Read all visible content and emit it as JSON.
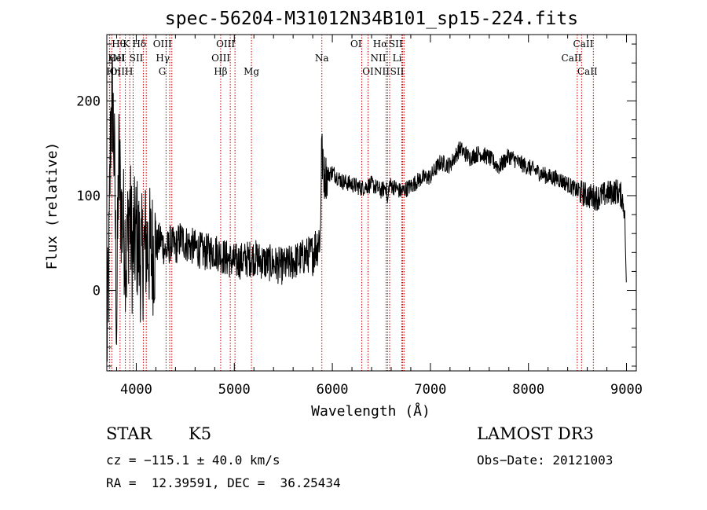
{
  "chart_data": {
    "type": "line",
    "title": "spec-56204-M31012N34B101_sp15-224.fits",
    "xlabel": "Wavelength (Å)",
    "ylabel": "Flux (relative)",
    "xlim": [
      3700,
      9100
    ],
    "ylim": [
      -85,
      270
    ],
    "xticks": [
      4000,
      5000,
      6000,
      7000,
      8000,
      9000
    ],
    "yticks": [
      0,
      100,
      200
    ],
    "spectrum": {
      "x": [
        3700,
        3720,
        3740,
        3760,
        3780,
        3800,
        3820,
        3850,
        3880,
        3900,
        3930,
        3960,
        4000,
        4050,
        4100,
        4150,
        4200,
        4250,
        4300,
        4350,
        4400,
        4450,
        4500,
        4600,
        4700,
        4800,
        4900,
        5000,
        5100,
        5200,
        5300,
        5400,
        5500,
        5600,
        5700,
        5800,
        5850,
        5880,
        5890,
        5900,
        5920,
        6000,
        6100,
        6200,
        6300,
        6400,
        6500,
        6550,
        6563,
        6580,
        6650,
        6700,
        6800,
        6900,
        7000,
        7100,
        7200,
        7300,
        7400,
        7500,
        7600,
        7700,
        7800,
        7900,
        8000,
        8100,
        8200,
        8300,
        8400,
        8500,
        8600,
        8700,
        8800,
        8900,
        8950,
        8980,
        9000
      ],
      "y": [
        -60,
        20,
        180,
        200,
        120,
        -40,
        140,
        80,
        60,
        30,
        90,
        40,
        60,
        30,
        50,
        40,
        45,
        55,
        40,
        50,
        45,
        55,
        50,
        45,
        40,
        42,
        35,
        30,
        32,
        35,
        30,
        28,
        25,
        30,
        35,
        40,
        50,
        60,
        170,
        130,
        120,
        125,
        115,
        112,
        108,
        112,
        105,
        110,
        90,
        112,
        108,
        104,
        110,
        118,
        120,
        135,
        132,
        150,
        140,
        145,
        140,
        130,
        142,
        135,
        130,
        125,
        120,
        118,
        112,
        105,
        100,
        98,
        102,
        105,
        100,
        85,
        0
      ]
    },
    "lines": [
      {
        "label": "Hθ",
        "wave": 3750,
        "row": 0,
        "anchor": "start"
      },
      {
        "label": "K",
        "wave": 3934,
        "row": 0,
        "anchor": "end"
      },
      {
        "label": "Hδ",
        "wave": 4102,
        "row": 0,
        "anchor": "end"
      },
      {
        "label": "OIII",
        "wave": 4363,
        "row": 0,
        "anchor": "end"
      },
      {
        "label": "OIII",
        "wave": 5007,
        "row": 0,
        "anchor": "end"
      },
      {
        "label": "OI",
        "wave": 6300,
        "row": 0,
        "anchor": "end"
      },
      {
        "label": "Hα",
        "wave": 6563,
        "row": 0,
        "anchor": "end"
      },
      {
        "label": "SII",
        "wave": 6717,
        "row": 0,
        "anchor": "end"
      },
      {
        "label": "CaII",
        "wave": 8662,
        "row": 0,
        "anchor": "end"
      },
      {
        "label": "OII",
        "wave": 3727,
        "row": 1,
        "anchor": "start"
      },
      {
        "label": "HeI",
        "wave": 3889,
        "row": 1,
        "anchor": "end"
      },
      {
        "label": "SII",
        "wave": 4072,
        "row": 1,
        "anchor": "end"
      },
      {
        "label": "Hγ",
        "wave": 4341,
        "row": 1,
        "anchor": "end"
      },
      {
        "label": "OIII",
        "wave": 4959,
        "row": 1,
        "anchor": "end"
      },
      {
        "label": "Na",
        "wave": 5893,
        "row": 1,
        "anchor": "middle"
      },
      {
        "label": "NII",
        "wave": 6548,
        "row": 1,
        "anchor": "end"
      },
      {
        "label": "Li",
        "wave": 6708,
        "row": 1,
        "anchor": "end"
      },
      {
        "label": "CaII",
        "wave": 8542,
        "row": 1,
        "anchor": "end"
      },
      {
        "label": "OII",
        "wave": 3729,
        "row": 2,
        "anchor": "start"
      },
      {
        "label": "Hη",
        "wave": 3835,
        "row": 2,
        "anchor": "end"
      },
      {
        "label": "H",
        "wave": 3968,
        "row": 2,
        "anchor": "end"
      },
      {
        "label": "G",
        "wave": 4304,
        "row": 2,
        "anchor": "end"
      },
      {
        "label": "Hβ",
        "wave": 4861,
        "row": 2,
        "anchor": "middle"
      },
      {
        "label": "Mg",
        "wave": 5175,
        "row": 2,
        "anchor": "middle"
      },
      {
        "label": "OI",
        "wave": 6364,
        "row": 2,
        "anchor": "middle"
      },
      {
        "label": "NII",
        "wave": 6584,
        "row": 2,
        "anchor": "end"
      },
      {
        "label": "SII",
        "wave": 6731,
        "row": 2,
        "anchor": "end"
      },
      {
        "label": "CaII",
        "wave": 8498,
        "row": 2,
        "anchor": "start"
      }
    ],
    "line_color": "#cc0000"
  },
  "info": {
    "class": "STAR",
    "subclass": "K5",
    "survey": "LAMOST DR3",
    "cz": "cz = −115.1 ± 40.0 km/s",
    "obsdate": "Obs−Date: 20121003",
    "radec": "RA =  12.39591, DEC =  36.25434"
  }
}
